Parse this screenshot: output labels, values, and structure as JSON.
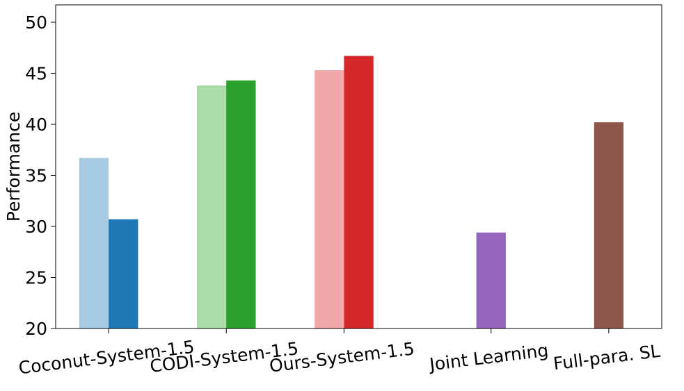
{
  "chart_data": {
    "type": "bar",
    "title": "",
    "xlabel": "",
    "ylabel": "Performance",
    "ylim": [
      20,
      51.7
    ],
    "yticks": [
      20,
      25,
      30,
      35,
      40,
      45,
      50
    ],
    "grid": false,
    "categories": [
      "Coconut-System-1.5",
      "CODI-System-1.5",
      "Ours-System-1.5",
      "Joint Learning",
      "Full-para. SL"
    ],
    "bars": [
      {
        "category": "Coconut-System-1.5",
        "value": 36.7,
        "color": "#a6cae2"
      },
      {
        "category": "Coconut-System-1.5",
        "value": 30.7,
        "color": "#1f77b4"
      },
      {
        "category": "CODI-System-1.5",
        "value": 43.8,
        "color": "#abdba8"
      },
      {
        "category": "CODI-System-1.5",
        "value": 44.3,
        "color": "#2ca02c"
      },
      {
        "category": "Ours-System-1.5",
        "value": 45.3,
        "color": "#f0a8a8"
      },
      {
        "category": "Ours-System-1.5",
        "value": 46.7,
        "color": "#d62728"
      },
      {
        "category": "Joint Learning",
        "value": 29.4,
        "color": "#9467bd"
      },
      {
        "category": "Full-para. SL",
        "value": 40.2,
        "color": "#8c564b"
      }
    ]
  }
}
